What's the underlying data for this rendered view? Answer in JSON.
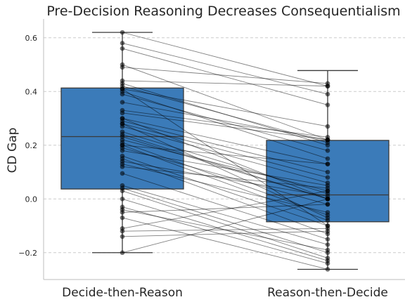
{
  "chart_data": {
    "type": "box",
    "title": "Pre-Decision Reasoning Decreases Consequentialism",
    "xlabel": "",
    "ylabel": "CD Gap",
    "categories": [
      "Decide-then-Reason",
      "Reason-then-Decide"
    ],
    "ylim": [
      -0.3,
      0.67
    ],
    "yticks": [
      -0.2,
      0.0,
      0.2,
      0.4,
      0.6
    ],
    "ytick_labels": [
      "−0.2",
      "0.0",
      "0.2",
      "0.4",
      "0.6"
    ],
    "grid": "horizontal dashed",
    "box_color": "#3b7bb9",
    "box_edge_color": "#3a3a3a",
    "point_color": "#000000",
    "boxes": [
      {
        "name": "Decide-then-Reason",
        "whisker_low": -0.2,
        "q1": 0.037,
        "median": 0.232,
        "q3": 0.413,
        "whisker_high": 0.62
      },
      {
        "name": "Reason-then-Decide",
        "whisker_low": -0.262,
        "q1": -0.085,
        "median": 0.015,
        "q3": 0.218,
        "whisker_high": 0.478
      }
    ],
    "pairs": [
      [
        0.62,
        0.42
      ],
      [
        0.58,
        0.39
      ],
      [
        0.56,
        0.35
      ],
      [
        0.5,
        0.22
      ],
      [
        0.49,
        0.43
      ],
      [
        0.44,
        0.42
      ],
      [
        0.43,
        0.2
      ],
      [
        0.42,
        0.21
      ],
      [
        0.41,
        0.27
      ],
      [
        0.4,
        0.15
      ],
      [
        0.39,
        0.18
      ],
      [
        0.33,
        0.23
      ],
      [
        0.32,
        0.22
      ],
      [
        0.3,
        0.13
      ],
      [
        0.29,
        0.1
      ],
      [
        0.28,
        0.08
      ],
      [
        0.27,
        0.06
      ],
      [
        0.25,
        0.02
      ],
      [
        0.24,
        0.0
      ],
      [
        0.232,
        0.0
      ],
      [
        0.22,
        0.03
      ],
      [
        0.21,
        -0.06
      ],
      [
        0.2,
        -0.08
      ],
      [
        0.19,
        -0.02
      ],
      [
        0.18,
        0.05
      ],
      [
        0.16,
        -0.1
      ],
      [
        0.15,
        -0.13
      ],
      [
        0.14,
        0.01
      ],
      [
        0.13,
        -0.05
      ],
      [
        0.12,
        0.04
      ],
      [
        0.095,
        -0.15
      ],
      [
        0.05,
        -0.17
      ],
      [
        0.04,
        -0.2
      ],
      [
        0.03,
        -0.22
      ],
      [
        0.0,
        -0.23
      ],
      [
        -0.03,
        -0.24
      ],
      [
        -0.04,
        -0.19
      ],
      [
        -0.05,
        -0.02
      ],
      [
        -0.07,
        -0.262
      ],
      [
        -0.11,
        0.03
      ],
      [
        -0.12,
        -0.11
      ],
      [
        -0.14,
        -0.12
      ],
      [
        -0.2,
        0.0
      ],
      [
        0.28,
        -0.07
      ],
      [
        0.3,
        0.0
      ],
      [
        0.2,
        0.13
      ],
      [
        0.41,
        -0.1
      ],
      [
        0.36,
        0.22
      ]
    ]
  }
}
